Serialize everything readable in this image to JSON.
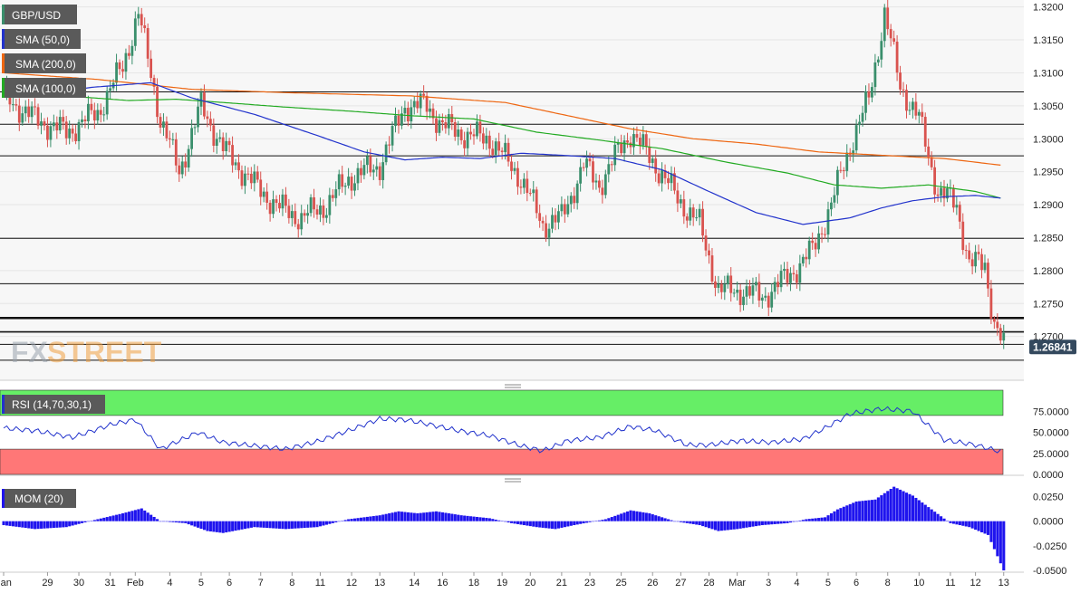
{
  "chart_data": {
    "type": "candlestick",
    "symbol": "GBP/USD",
    "watermark": {
      "fx": "FX",
      "street": "STREET"
    },
    "legend": {
      "price": "GBP/USD",
      "sma50": "SMA (50,0)",
      "sma200": "SMA (200,0)",
      "sma100": "SMA (100,0)",
      "rsi": "RSI (14,70,30,1)",
      "mom": "MOM (20)"
    },
    "colors": {
      "up": "#3a8f6c",
      "down": "#d9534f",
      "sma50": "#2233cc",
      "sma100": "#22aa22",
      "sma200": "#ee6611",
      "rsi_line": "#2233cc",
      "rsi_overbought": "#66ee66",
      "rsi_oversold": "#ff7777",
      "mom_bar": "#1f14ee",
      "price_tag": "#34495e"
    },
    "price_axis": {
      "ylim": [
        1.2635,
        1.3205
      ],
      "ticks": [
        "1.3200",
        "1.3150",
        "1.3100",
        "1.3050",
        "1.3000",
        "1.2950",
        "1.2900",
        "1.2850",
        "1.2800",
        "1.2750",
        "1.2700"
      ],
      "tick_values": [
        1.32,
        1.315,
        1.31,
        1.305,
        1.3,
        1.295,
        1.29,
        1.285,
        1.28,
        1.275,
        1.27
      ],
      "last_price": "1.26841",
      "last_value": 1.26841
    },
    "rsi_axis": {
      "ticks": [
        "75.0000",
        "50.0000",
        "25.0000",
        "0.0000"
      ],
      "tick_values": [
        75,
        50,
        25,
        0
      ],
      "overbought": 70,
      "oversold": 30
    },
    "mom_axis": {
      "ticks": [
        "0.0250",
        "0.0000",
        "-0.0250",
        "-0.0500"
      ],
      "tick_values": [
        0.025,
        0,
        -0.025,
        -0.05
      ],
      "ylim": [
        -0.0518,
        0.0365
      ]
    },
    "x_axis": {
      "labels": [
        "Jan",
        "29",
        "30",
        "31",
        "Feb",
        "4",
        "5",
        "6",
        "7",
        "8",
        "11",
        "12",
        "13",
        "14",
        "16",
        "18",
        "19",
        "20",
        "21",
        "23",
        "25",
        "26",
        "27",
        "28",
        "Mar",
        "3",
        "4",
        "5",
        "6",
        "8",
        "10",
        "11",
        "12",
        "13"
      ],
      "label_slots": [
        0,
        14,
        24,
        34,
        42,
        53,
        63,
        72,
        82,
        92,
        101,
        111,
        120,
        131,
        140,
        150,
        159,
        168,
        178,
        187,
        197,
        207,
        216,
        225,
        234,
        244,
        253,
        263,
        272,
        282,
        292,
        302,
        310,
        319
      ]
    },
    "horizontal_levels": [
      1.3071,
      1.3022,
      1.2974,
      1.2849,
      1.278,
      1.2728,
      1.2707,
      1.2688,
      1.2664
    ],
    "sma50_points": [
      [
        0,
        1.3071
      ],
      [
        14,
        1.3068
      ],
      [
        28,
        1.3078
      ],
      [
        47,
        1.3085
      ],
      [
        60,
        1.3062
      ],
      [
        80,
        1.3037
      ],
      [
        100,
        1.3005
      ],
      [
        115,
        1.298
      ],
      [
        128,
        1.2968
      ],
      [
        140,
        1.2972
      ],
      [
        152,
        1.297
      ],
      [
        165,
        1.2978
      ],
      [
        178,
        1.2975
      ],
      [
        195,
        1.297
      ],
      [
        210,
        1.2953
      ],
      [
        225,
        1.292
      ],
      [
        240,
        1.2888
      ],
      [
        255,
        1.287
      ],
      [
        270,
        1.288
      ],
      [
        280,
        1.2895
      ],
      [
        290,
        1.2906
      ],
      [
        300,
        1.2912
      ],
      [
        310,
        1.2914
      ],
      [
        318,
        1.291
      ]
    ],
    "sma100_points": [
      [
        0,
        1.3069
      ],
      [
        20,
        1.3065
      ],
      [
        40,
        1.3058
      ],
      [
        55,
        1.306
      ],
      [
        70,
        1.3055
      ],
      [
        90,
        1.3048
      ],
      [
        110,
        1.3042
      ],
      [
        130,
        1.3035
      ],
      [
        150,
        1.303
      ],
      [
        170,
        1.301
      ],
      [
        190,
        1.2998
      ],
      [
        210,
        1.2985
      ],
      [
        230,
        1.2965
      ],
      [
        250,
        1.2948
      ],
      [
        265,
        1.293
      ],
      [
        280,
        1.2925
      ],
      [
        295,
        1.293
      ],
      [
        310,
        1.292
      ],
      [
        318,
        1.291
      ]
    ],
    "sma200_points": [
      [
        0,
        1.31
      ],
      [
        30,
        1.309
      ],
      [
        60,
        1.3075
      ],
      [
        90,
        1.307
      ],
      [
        130,
        1.3065
      ],
      [
        160,
        1.3055
      ],
      [
        180,
        1.3035
      ],
      [
        200,
        1.3015
      ],
      [
        220,
        1.3
      ],
      [
        240,
        1.2992
      ],
      [
        260,
        1.298
      ],
      [
        280,
        1.2975
      ],
      [
        300,
        1.297
      ],
      [
        318,
        1.296
      ]
    ],
    "rsi_points": [
      [
        0,
        55
      ],
      [
        10,
        52
      ],
      [
        22,
        44
      ],
      [
        35,
        60
      ],
      [
        42,
        65
      ],
      [
        50,
        30
      ],
      [
        62,
        50
      ],
      [
        70,
        38
      ],
      [
        80,
        34
      ],
      [
        90,
        30
      ],
      [
        100,
        39
      ],
      [
        110,
        52
      ],
      [
        120,
        66
      ],
      [
        128,
        65
      ],
      [
        135,
        60
      ],
      [
        145,
        52
      ],
      [
        155,
        46
      ],
      [
        165,
        34
      ],
      [
        172,
        28
      ],
      [
        180,
        40
      ],
      [
        190,
        44
      ],
      [
        200,
        57
      ],
      [
        208,
        52
      ],
      [
        218,
        35
      ],
      [
        225,
        35
      ],
      [
        235,
        40
      ],
      [
        245,
        38
      ],
      [
        255,
        42
      ],
      [
        262,
        55
      ],
      [
        270,
        72
      ],
      [
        280,
        78
      ],
      [
        290,
        75
      ],
      [
        300,
        41
      ],
      [
        310,
        35
      ],
      [
        318,
        27
      ]
    ],
    "price_path": [
      [
        0,
        1.3065
      ],
      [
        10,
        1.303
      ],
      [
        20,
        1.301
      ],
      [
        30,
        1.304
      ],
      [
        38,
        1.311
      ],
      [
        43,
        1.319
      ],
      [
        50,
        1.303
      ],
      [
        56,
        1.295
      ],
      [
        63,
        1.305
      ],
      [
        70,
        1.2985
      ],
      [
        80,
        1.293
      ],
      [
        88,
        1.2895
      ],
      [
        95,
        1.288
      ],
      [
        103,
        1.29
      ],
      [
        110,
        1.294
      ],
      [
        120,
        1.296
      ],
      [
        128,
        1.305
      ],
      [
        135,
        1.305
      ],
      [
        140,
        1.302
      ],
      [
        148,
        1.3005
      ],
      [
        155,
        1.3
      ],
      [
        165,
        1.294
      ],
      [
        172,
        1.287
      ],
      [
        178,
        1.288
      ],
      [
        185,
        1.296
      ],
      [
        190,
        1.293
      ],
      [
        196,
        1.298
      ],
      [
        200,
        1.301
      ],
      [
        208,
        1.296
      ],
      [
        215,
        1.291
      ],
      [
        222,
        1.287
      ],
      [
        228,
        1.277
      ],
      [
        235,
        1.277
      ],
      [
        242,
        1.276
      ],
      [
        250,
        1.279
      ],
      [
        258,
        1.283
      ],
      [
        264,
        1.29
      ],
      [
        270,
        1.299
      ],
      [
        276,
        1.306
      ],
      [
        281,
        1.319
      ],
      [
        286,
        1.308
      ],
      [
        292,
        1.303
      ],
      [
        298,
        1.292
      ],
      [
        304,
        1.29
      ],
      [
        308,
        1.281
      ],
      [
        313,
        1.281
      ],
      [
        316,
        1.272
      ],
      [
        319,
        1.2684
      ]
    ],
    "mom_points": [
      [
        0,
        -0.004
      ],
      [
        10,
        -0.008
      ],
      [
        20,
        -0.006
      ],
      [
        30,
        0.002
      ],
      [
        38,
        0.008
      ],
      [
        44,
        0.013
      ],
      [
        50,
        0.0
      ],
      [
        58,
        -0.002
      ],
      [
        65,
        -0.01
      ],
      [
        70,
        -0.012
      ],
      [
        80,
        -0.006
      ],
      [
        90,
        -0.008
      ],
      [
        100,
        -0.006
      ],
      [
        110,
        0.002
      ],
      [
        120,
        0.006
      ],
      [
        126,
        0.01
      ],
      [
        132,
        0.008
      ],
      [
        138,
        0.01
      ],
      [
        146,
        0.006
      ],
      [
        155,
        0.003
      ],
      [
        162,
        -0.002
      ],
      [
        170,
        -0.006
      ],
      [
        176,
        -0.008
      ],
      [
        182,
        -0.004
      ],
      [
        192,
        0.002
      ],
      [
        200,
        0.011
      ],
      [
        206,
        0.008
      ],
      [
        214,
        0.0
      ],
      [
        222,
        -0.004
      ],
      [
        228,
        -0.01
      ],
      [
        234,
        -0.008
      ],
      [
        242,
        -0.004
      ],
      [
        250,
        -0.002
      ],
      [
        256,
        0.002
      ],
      [
        262,
        0.004
      ],
      [
        266,
        0.012
      ],
      [
        272,
        0.02
      ],
      [
        278,
        0.022
      ],
      [
        284,
        0.035
      ],
      [
        290,
        0.026
      ],
      [
        296,
        0.012
      ],
      [
        302,
        -0.002
      ],
      [
        308,
        -0.006
      ],
      [
        314,
        -0.014
      ],
      [
        319,
        -0.05
      ]
    ]
  }
}
